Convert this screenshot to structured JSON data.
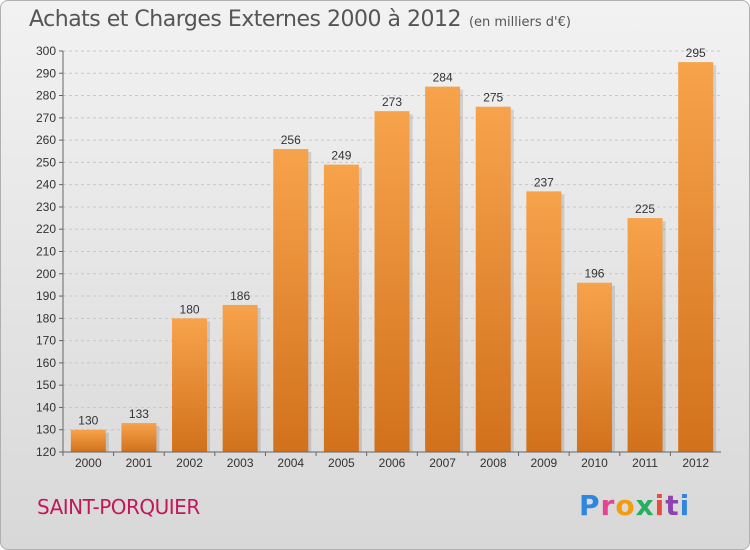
{
  "header": {
    "title": "Achats et Charges Externes 2000 à 2012",
    "unit": "(en milliers d'€)"
  },
  "footer": {
    "commune": "SAINT-PORQUIER",
    "brand": "Proxiti"
  },
  "colors": {
    "bar_top": "#f7a34c",
    "bar_bottom": "#d2711c",
    "title": "#555555",
    "commune": "#c2185b",
    "grid": "#c8c8c8"
  },
  "logo_letters": [
    {
      "ch": "P",
      "color": "#2e86de"
    },
    {
      "ch": "r",
      "color": "#e84393"
    },
    {
      "ch": "o",
      "color": "#f39c12"
    },
    {
      "ch": "x",
      "color": "#27ae60"
    },
    {
      "ch": "i",
      "color": "#e74c3c"
    },
    {
      "ch": "t",
      "color": "#8e44ad"
    },
    {
      "ch": "i",
      "color": "#2e86de"
    }
  ],
  "chart_data": {
    "type": "bar",
    "title": "Achats et Charges Externes 2000 à 2012",
    "subtitle": "(en milliers d'€)",
    "categories": [
      "2000",
      "2001",
      "2002",
      "2003",
      "2004",
      "2005",
      "2006",
      "2007",
      "2008",
      "2009",
      "2010",
      "2011",
      "2012"
    ],
    "values": [
      130,
      133,
      180,
      186,
      256,
      249,
      273,
      284,
      275,
      237,
      196,
      225,
      295
    ],
    "ylim": [
      120,
      300
    ],
    "ytick_step": 10,
    "grid": true,
    "data_labels": true
  }
}
